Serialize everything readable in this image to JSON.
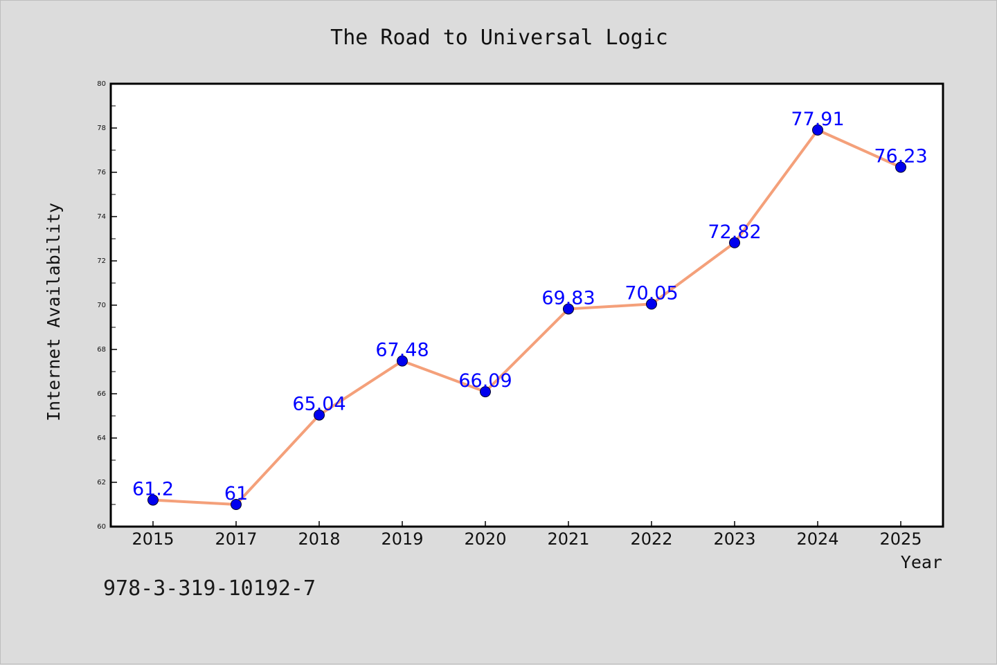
{
  "chart_data": {
    "type": "line",
    "title": "The Road to Universal Logic",
    "xlabel": "Year",
    "ylabel": "Internet Availability",
    "categories": [
      "2015",
      "2017",
      "2018",
      "2019",
      "2020",
      "2021",
      "2022",
      "2023",
      "2024",
      "2025"
    ],
    "series": [
      {
        "values": [
          61.2,
          61,
          65.04,
          67.48,
          66.09,
          69.83,
          70.05,
          72.82,
          77.91,
          76.23
        ],
        "labels": [
          "61.2",
          "61",
          "65.04",
          "67.48",
          "66.09",
          "69.83",
          "70.05",
          "72.82",
          "77.91",
          "76.23"
        ],
        "line_color": "#f4a07a",
        "marker_color": "#0000ee",
        "label_color": "#0000ff"
      }
    ],
    "ylim": [
      60,
      80
    ],
    "yticks": [
      "60",
      "62",
      "64",
      "66",
      "68",
      "70",
      "72",
      "74",
      "76",
      "78",
      "80"
    ],
    "grid": false,
    "legend": "none"
  },
  "footer": {
    "isbn": "978-3-319-10192-7"
  },
  "colors": {
    "background": "#dcdcdc",
    "plot_background": "#ffffff"
  }
}
